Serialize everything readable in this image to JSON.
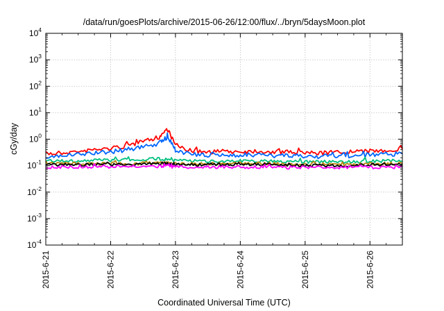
{
  "chart_data": {
    "type": "line",
    "title": "/data/run/goesPlots/archive/2015-06-26/12:00/flux/../bryn/5daysMoon.plot",
    "xlabel": "Coordinated Universal Time (UTC)",
    "ylabel": "cGy/day",
    "yscale": "log",
    "ylim": [
      0.0001,
      10000
    ],
    "xlim": [
      "2015-06-21",
      "2015-06-26T12:00"
    ],
    "grid": true,
    "legend": "none",
    "y_ticks": [
      {
        "base": "10",
        "exp": "-4",
        "value": 0.0001
      },
      {
        "base": "10",
        "exp": "-3",
        "value": 0.001
      },
      {
        "base": "10",
        "exp": "-2",
        "value": 0.01
      },
      {
        "base": "10",
        "exp": "-1",
        "value": 0.1
      },
      {
        "base": "10",
        "exp": "0",
        "value": 1
      },
      {
        "base": "10",
        "exp": "1",
        "value": 10
      },
      {
        "base": "10",
        "exp": "2",
        "value": 100
      },
      {
        "base": "10",
        "exp": "3",
        "value": 1000
      },
      {
        "base": "10",
        "exp": "4",
        "value": 10000
      }
    ],
    "x_tick_labels": [
      "2015-6-21",
      "2015-6-22",
      "2015-6-23",
      "2015-6-24",
      "2015-6-25",
      "2015-6-26"
    ],
    "x": [
      "2015-06-21T00:00",
      "2015-06-21T06:00",
      "2015-06-21T12:00",
      "2015-06-21T18:00",
      "2015-06-22T00:00",
      "2015-06-22T06:00",
      "2015-06-22T12:00",
      "2015-06-22T18:00",
      "2015-06-22T21:00",
      "2015-06-23T00:00",
      "2015-06-23T06:00",
      "2015-06-23T12:00",
      "2015-06-23T18:00",
      "2015-06-24T00:00",
      "2015-06-24T06:00",
      "2015-06-24T12:00",
      "2015-06-24T18:00",
      "2015-06-25T00:00",
      "2015-06-25T06:00",
      "2015-06-25T12:00",
      "2015-06-25T18:00",
      "2015-06-26T00:00",
      "2015-06-26T06:00",
      "2015-06-26T12:00"
    ],
    "series": [
      {
        "color": "#ff0000",
        "values": [
          0.28,
          0.3,
          0.34,
          0.4,
          0.45,
          0.55,
          0.8,
          1.2,
          2.5,
          0.6,
          0.35,
          0.33,
          0.35,
          0.34,
          0.36,
          0.33,
          0.32,
          0.31,
          0.3,
          0.32,
          0.33,
          0.35,
          0.38,
          0.42
        ]
      },
      {
        "color": "#0066ff",
        "values": [
          0.22,
          0.23,
          0.26,
          0.3,
          0.33,
          0.4,
          0.5,
          0.7,
          1.2,
          0.4,
          0.26,
          0.24,
          0.25,
          0.25,
          0.25,
          0.24,
          0.23,
          0.23,
          0.22,
          0.23,
          0.24,
          0.25,
          0.27,
          0.28
        ]
      },
      {
        "color": "#00c080",
        "values": [
          0.15,
          0.15,
          0.15,
          0.16,
          0.16,
          0.17,
          0.17,
          0.18,
          0.18,
          0.16,
          0.15,
          0.15,
          0.15,
          0.15,
          0.15,
          0.15,
          0.14,
          0.14,
          0.14,
          0.14,
          0.14,
          0.15,
          0.15,
          0.15
        ]
      },
      {
        "color": "#b8860b",
        "values": [
          0.12,
          0.12,
          0.12,
          0.12,
          0.12,
          0.12,
          0.12,
          0.13,
          0.13,
          0.12,
          0.12,
          0.12,
          0.12,
          0.12,
          0.12,
          0.12,
          0.11,
          0.11,
          0.11,
          0.11,
          0.11,
          0.12,
          0.12,
          0.12
        ]
      },
      {
        "color": "#000000",
        "values": [
          0.11,
          0.11,
          0.11,
          0.11,
          0.11,
          0.11,
          0.11,
          0.12,
          0.12,
          0.11,
          0.11,
          0.11,
          0.11,
          0.11,
          0.11,
          0.11,
          0.1,
          0.1,
          0.1,
          0.1,
          0.1,
          0.11,
          0.11,
          0.11
        ]
      },
      {
        "color": "#ff00ff",
        "values": [
          0.088,
          0.088,
          0.09,
          0.09,
          0.092,
          0.092,
          0.093,
          0.095,
          0.095,
          0.09,
          0.088,
          0.088,
          0.088,
          0.088,
          0.088,
          0.086,
          0.085,
          0.085,
          0.085,
          0.085,
          0.086,
          0.087,
          0.088,
          0.088
        ]
      }
    ]
  }
}
